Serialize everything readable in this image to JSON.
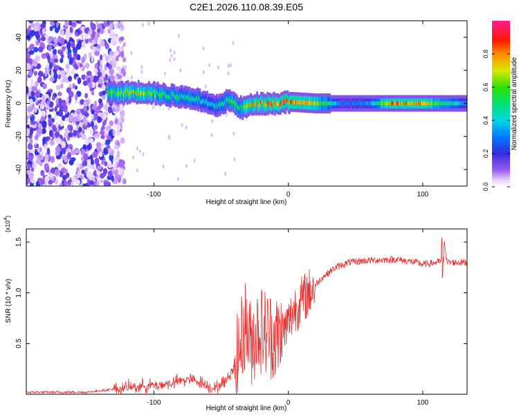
{
  "title": "C2E1.2026.110.08.39.E05",
  "chart_data": [
    {
      "type": "heatmap",
      "xlabel": "Height of straight line (km)",
      "ylabel": "Frequency (Hz)",
      "xlim": [
        -195,
        133
      ],
      "ylim": [
        -50,
        50
      ],
      "xticks": [
        -100,
        0,
        100
      ],
      "yticks": [
        -40,
        -20,
        0,
        20,
        40
      ],
      "colorbar": {
        "label": "Normalized spectral amplitude",
        "range": [
          0,
          1
        ],
        "ticks": [
          "0.0",
          "0.2",
          "0.4",
          "0.6",
          "0.8"
        ],
        "colormap": "rainbow (purple-blue-cyan-green-yellow-red-magenta)"
      },
      "ridge": {
        "description": "narrow band of high amplitude near 0 Hz",
        "x": [
          -135,
          -110,
          -90,
          -70,
          -55,
          -45,
          -35,
          -25,
          -10,
          0,
          20,
          40,
          60,
          80,
          100,
          133
        ],
        "center_hz": [
          6,
          7,
          5,
          3,
          -2,
          2,
          -3,
          0,
          0,
          1,
          0,
          0,
          0,
          0,
          0,
          0
        ],
        "peak_amplitude": [
          0.6,
          0.7,
          0.55,
          0.5,
          0.45,
          0.55,
          0.6,
          0.8,
          0.85,
          0.9,
          0.7,
          0.3,
          0.35,
          0.9,
          0.8,
          0.3
        ]
      },
      "noise_region_x": [
        -195,
        -130
      ],
      "colors": {
        "low": "#7b2fe0",
        "mid": "#00e0c0",
        "high": "#ff2020"
      }
    },
    {
      "type": "line",
      "xlabel": "Height of straight line (km)",
      "ylabel": "SNR (10 * v/v)",
      "y_multiplier_label": "(x10",
      "y_multiplier_exp": "4",
      "xlim": [
        -195,
        133
      ],
      "ylim": [
        0.0,
        1.63
      ],
      "xticks": [
        -100,
        0,
        100
      ],
      "yticks": [
        0.5,
        1.0,
        1.5
      ],
      "ytick_labels": [
        "0.5",
        "1.0",
        "1.5"
      ],
      "series": [
        {
          "name": "SNR",
          "color": "#e83030",
          "x": [
            -195,
            -150,
            -130,
            -110,
            -90,
            -75,
            -65,
            -55,
            -45,
            -38,
            -32,
            -28,
            -22,
            -15,
            -8,
            -2,
            5,
            15,
            25,
            35,
            45,
            60,
            80,
            95,
            100,
            110,
            114,
            116,
            118,
            125,
            133
          ],
          "y": [
            0.02,
            0.02,
            0.05,
            0.08,
            0.1,
            0.15,
            0.12,
            0.05,
            0.15,
            0.35,
            0.7,
            0.5,
            0.65,
            0.6,
            0.55,
            0.65,
            0.85,
            1.0,
            1.15,
            1.25,
            1.3,
            1.32,
            1.33,
            1.3,
            1.28,
            1.3,
            1.31,
            1.55,
            1.3,
            1.3,
            1.3
          ]
        }
      ]
    }
  ]
}
